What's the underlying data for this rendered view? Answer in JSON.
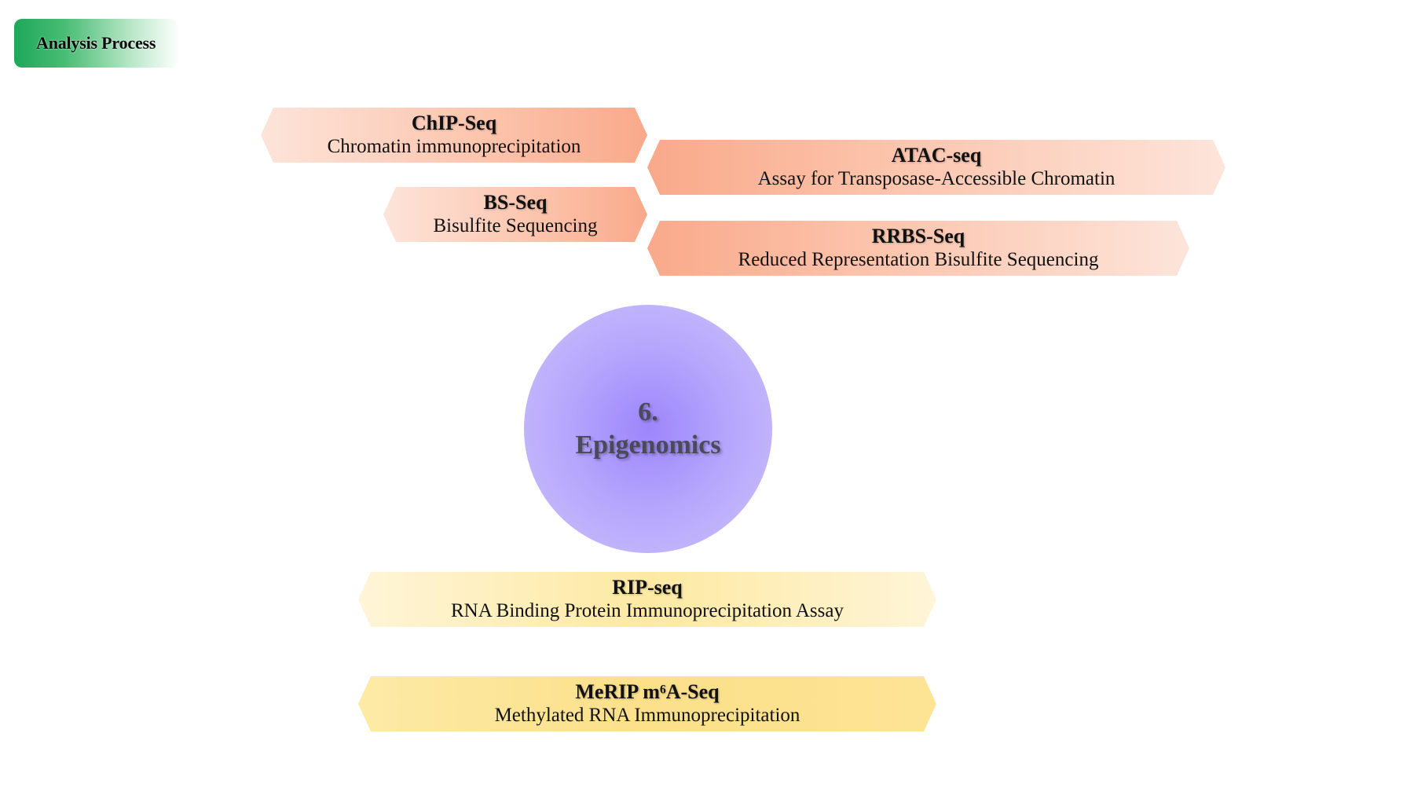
{
  "header": {
    "tag_label": "Analysis Process"
  },
  "center": {
    "number": "6.",
    "title": "Epigenomics"
  },
  "methods": [
    {
      "title": "ChIP-Seq",
      "description": "Chromatin immunoprecipitation"
    },
    {
      "title": "BS-Seq",
      "description": "Bisulfite Sequencing"
    },
    {
      "title": "ATAC-seq",
      "description": "Assay for Transposase-Accessible Chromatin"
    },
    {
      "title": "RRBS-Seq",
      "description": "Reduced Representation Bisulfite Sequencing"
    },
    {
      "title": "RIP-seq",
      "description": "RNA Binding Protein Immunoprecipitation Assay"
    },
    {
      "title": "MeRIP m⁶A-Seq",
      "description": "Methylated RNA Immunoprecipitation"
    }
  ],
  "colors": {
    "header_green": "#1fa85a",
    "peach": "#f9a98a",
    "yellow": "#fce08a",
    "circle_purple": "#9c86fb",
    "circle_text": "#4a4a5a"
  }
}
